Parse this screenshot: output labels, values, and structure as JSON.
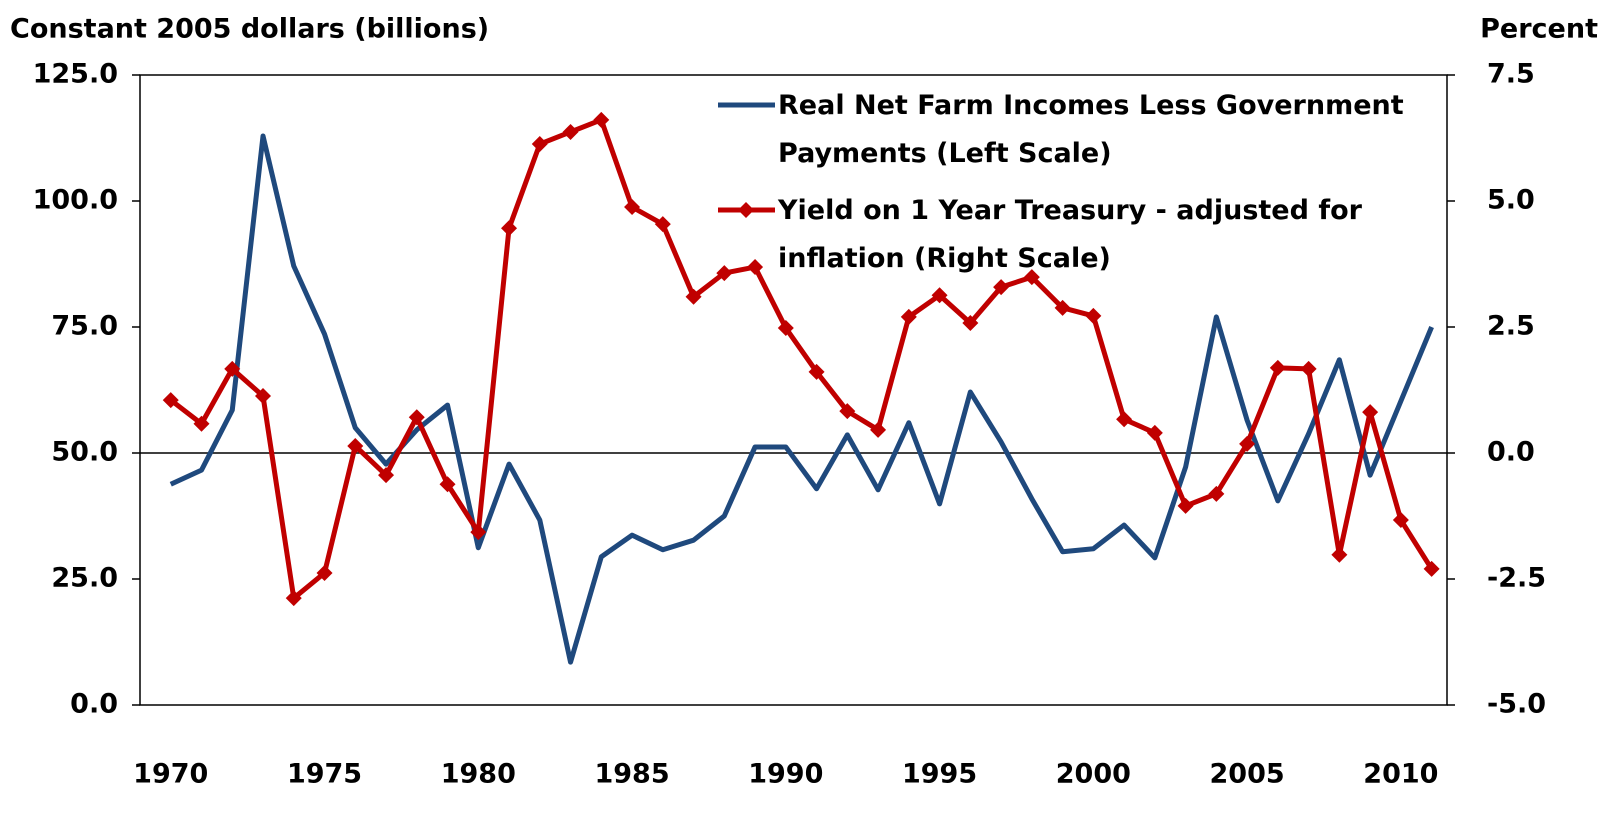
{
  "chart_data": {
    "type": "line",
    "y_label": "Constant 2005 dollars (billions)",
    "y2_label": "Percent",
    "x": [
      1970,
      1971,
      1972,
      1973,
      1974,
      1975,
      1976,
      1977,
      1978,
      1979,
      1980,
      1981,
      1982,
      1983,
      1984,
      1985,
      1986,
      1987,
      1988,
      1989,
      1990,
      1991,
      1992,
      1993,
      1994,
      1995,
      1996,
      1997,
      1998,
      1999,
      2000,
      2001,
      2002,
      2003,
      2004,
      2005,
      2006,
      2007,
      2008,
      2009,
      2010,
      2011
    ],
    "xlim": [
      1969,
      2011.5
    ],
    "xticks": [
      1970,
      1975,
      1980,
      1985,
      1990,
      1995,
      2000,
      2005,
      2010
    ],
    "ylim": [
      0,
      125
    ],
    "yticks": [
      {
        "value": 0,
        "label": "0.0"
      },
      {
        "value": 25,
        "label": "25.0"
      },
      {
        "value": 50,
        "label": "50.0"
      },
      {
        "value": 75,
        "label": "75.0"
      },
      {
        "value": 100,
        "label": "100.0"
      },
      {
        "value": 125,
        "label": "125.0"
      }
    ],
    "y2lim": [
      -5,
      7.5
    ],
    "y2ticks": [
      {
        "value": -5,
        "label": "-5.0"
      },
      -2.5,
      {
        "value": 0,
        "label": "0.0"
      },
      2.5,
      {
        "value": 5,
        "label": "5.0"
      },
      7.5
    ],
    "series": [
      {
        "name": "Real Net Farm Incomes Less Government Payments (Left Scale)",
        "color": "#1f497d",
        "marker": false,
        "values": [
          43.8,
          46.6,
          58.5,
          112.9,
          87.1,
          73.6,
          55,
          47.8,
          54.6,
          59.5,
          31.2,
          47.8,
          36.7,
          8.5,
          29.4,
          33.7,
          30.8,
          32.7,
          37.5,
          51.2,
          51.2,
          42.9,
          53.6,
          42.7,
          56,
          39.9,
          62.1,
          52.2,
          40.9,
          30.4,
          31,
          35.7,
          29.2,
          47.2,
          77,
          56.5,
          40.5,
          53.8,
          68.5,
          45.6,
          60.3,
          75
        ]
      },
      {
        "name": "Yield on 1 Year Treasury - adjusted for inflation (Right Scale)",
        "color": "#c00000",
        "marker": true,
        "axis": "y2",
        "values": [
          1.05,
          0.58,
          1.67,
          1.13,
          -2.88,
          -2.38,
          0.14,
          -0.44,
          0.71,
          -0.62,
          -1.57,
          4.46,
          6.13,
          6.37,
          6.61,
          4.88,
          4.54,
          3.1,
          3.57,
          3.69,
          2.48,
          1.61,
          0.83,
          0.46,
          2.7,
          3.13,
          2.58,
          3.29,
          3.49,
          2.88,
          2.72,
          0.67,
          0.4,
          -1.05,
          -0.81,
          0.18,
          1.69,
          1.67,
          -2.02,
          0.81,
          -1.33,
          -2.3
        ]
      }
    ]
  }
}
